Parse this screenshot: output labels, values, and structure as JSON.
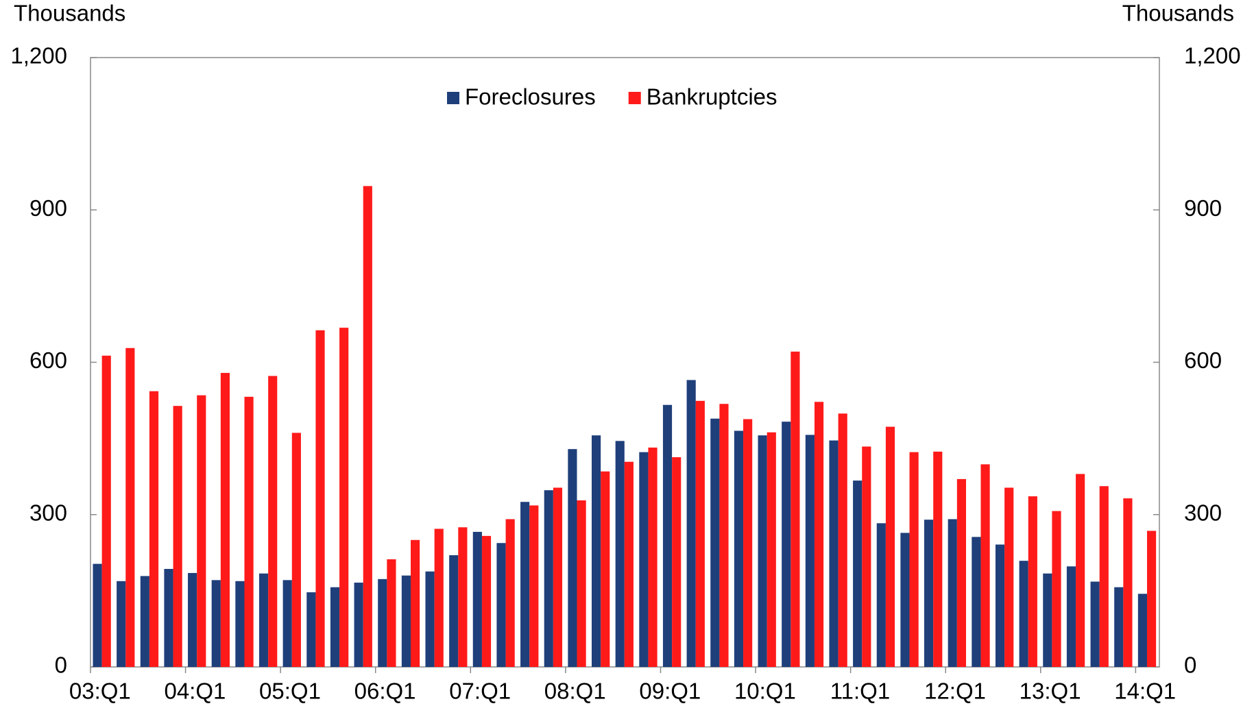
{
  "chart_data": {
    "type": "bar",
    "ylabel": "Thousands",
    "y2label": "Thousands",
    "categories": [
      "03:Q1",
      null,
      null,
      null,
      "04:Q1",
      null,
      null,
      null,
      "05:Q1",
      null,
      null,
      null,
      "06:Q1",
      null,
      null,
      null,
      "07:Q1",
      null,
      null,
      null,
      "08:Q1",
      null,
      null,
      null,
      "09:Q1",
      null,
      null,
      null,
      "10:Q1",
      null,
      null,
      null,
      "11:Q1",
      null,
      null,
      null,
      "12:Q1",
      null,
      null,
      null,
      "13:Q1",
      null,
      null,
      null,
      "14:Q1"
    ],
    "series": [
      {
        "name": "Foreclosures",
        "color": "#1f3f7a",
        "values": [
          203,
          169,
          179,
          193,
          185,
          171,
          169,
          184,
          171,
          147,
          157,
          166,
          173,
          180,
          188,
          220,
          266,
          244,
          325,
          348,
          429,
          456,
          445,
          423,
          516,
          565,
          489,
          465,
          456,
          483,
          457,
          446,
          367,
          283,
          264,
          290,
          291,
          256,
          241,
          209,
          184,
          198,
          168,
          157,
          144
        ]
      },
      {
        "name": "Bankruptcies",
        "color": "#ff1a1a",
        "values": [
          613,
          628,
          543,
          514,
          535,
          579,
          532,
          573,
          461,
          663,
          668,
          947,
          212,
          250,
          272,
          275,
          258,
          291,
          318,
          353,
          328,
          385,
          404,
          432,
          413,
          524,
          518,
          488,
          462,
          621,
          522,
          499,
          434,
          473,
          423,
          424,
          370,
          399,
          353,
          336,
          307,
          380,
          356,
          332,
          268
        ]
      }
    ],
    "ylim": [
      0,
      1200
    ],
    "yticks": [
      0,
      300,
      600,
      900,
      {
        "value": 1200,
        "label": "1,200"
      }
    ],
    "y2lim": [
      0,
      1200
    ],
    "y2ticks": [
      0,
      300,
      600,
      900,
      {
        "value": 1200,
        "label": "1,200"
      }
    ],
    "legend": "top"
  }
}
